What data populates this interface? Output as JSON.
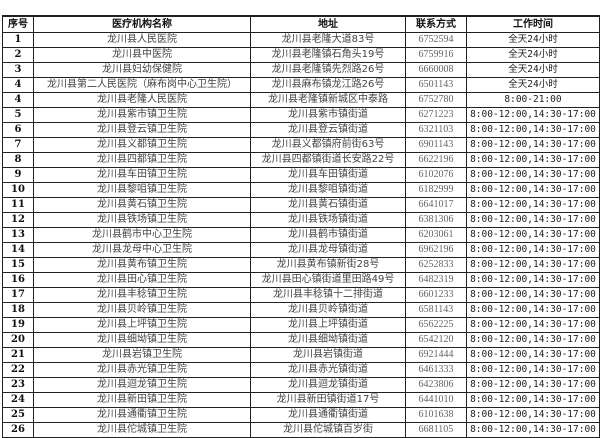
{
  "headers": [
    "序号",
    "医疗机构名称",
    "地址",
    "联系方式",
    "工作时间"
  ],
  "rows": [
    {
      "no": "1",
      "name": "龙川县人民医院",
      "address": "龙川县老隆大道83号",
      "phone": "6752594",
      "hours": "全天24小时"
    },
    {
      "no": "2",
      "name": "龙川县中医院",
      "address": "龙川县老隆镇石角头19号",
      "phone": "6759916",
      "hours": "全天24小时"
    },
    {
      "no": "3",
      "name": "龙川县妇幼保健院",
      "address": "龙川县老隆镇先烈路26号",
      "phone": "6660008",
      "hours": "全天24小时"
    },
    {
      "no": "4",
      "name": "龙川县第二人民医院（麻布岗中心卫生院）",
      "address": "龙川县麻布镇龙江路26号",
      "phone": "6501143",
      "hours": "全天24小时"
    },
    {
      "no": "4",
      "name": "龙川县老隆人民医院",
      "address": "龙川县老隆镇新城区中泰路",
      "phone": "6752780",
      "hours": "8:00-21:00"
    },
    {
      "no": "5",
      "name": "龙川县紫市镇卫生院",
      "address": "龙川县紫市镇街道",
      "phone": "6271223",
      "hours": "8:00-12:00,14:30-17:00"
    },
    {
      "no": "6",
      "name": "龙川县登云镇卫生院",
      "address": "龙川县登云镇街道",
      "phone": "6321103",
      "hours": "8:00-12:00,14:30-17:00"
    },
    {
      "no": "7",
      "name": "龙川县义都镇卫生院",
      "address": "龙川县义都镇府前街63号",
      "phone": "6901143",
      "hours": "8:00-12:00,14:30-17:00"
    },
    {
      "no": "8",
      "name": "龙川县四都镇卫生院",
      "address": "龙川县四都镇街道长安路22号",
      "phone": "6622196",
      "hours": "8:00-12:00,14:30-17:00"
    },
    {
      "no": "9",
      "name": "龙川县车田镇卫生院",
      "address": "龙川县车田镇街道",
      "phone": "6102076",
      "hours": "8:00-12:00,14:30-17:00"
    },
    {
      "no": "10",
      "name": "龙川县黎咀镇卫生院",
      "address": "龙川县黎咀镇街道",
      "phone": "6182999",
      "hours": "8:00-12:00,14:30-17:00"
    },
    {
      "no": "11",
      "name": "龙川县黄石镇卫生院",
      "address": "龙川县黄石镇街道",
      "phone": "6641017",
      "hours": "8:00-12:00,14:30-17:00"
    },
    {
      "no": "12",
      "name": "龙川县铁场镇卫生院",
      "address": "龙川县铁场镇街道",
      "phone": "6381306",
      "hours": "8:00-12:00,14:30-17:00"
    },
    {
      "no": "13",
      "name": "龙川县鹤市中心卫生院",
      "address": "龙川县鹤市镇街道",
      "phone": "6203061",
      "hours": "8:00-12:00,14:30-17:00"
    },
    {
      "no": "14",
      "name": "龙川县龙母中心卫生院",
      "address": "龙川县龙母镇街道",
      "phone": "6962196",
      "hours": "8:00-12:00,14:30-17:00"
    },
    {
      "no": "15",
      "name": "龙川县黄布镇卫生院",
      "address": "龙川县黄布镇新街28号",
      "phone": "6252833",
      "hours": "8:00-12:00,14:30-17:00"
    },
    {
      "no": "16",
      "name": "龙川县田心镇卫生院",
      "address": "龙川县田心镇街道里田路49号",
      "phone": "6482319",
      "hours": "8:00-12:00,14:30-17:00"
    },
    {
      "no": "17",
      "name": "龙川县丰稔镇卫生院",
      "address": "龙川县丰稔镇十二排街道",
      "phone": "6601233",
      "hours": "8:00-12:00,14:30-17:00"
    },
    {
      "no": "18",
      "name": "龙川县贝岭镇卫生院",
      "address": "龙川县贝岭镇街道",
      "phone": "6581143",
      "hours": "8:00-12:00,14:30-17:00"
    },
    {
      "no": "19",
      "name": "龙川县上坪镇卫生院",
      "address": "龙川县上坪镇街道",
      "phone": "6562225",
      "hours": "8:00-12:00,14:30-17:00"
    },
    {
      "no": "20",
      "name": "龙川县细坳镇卫生院",
      "address": "龙川县细坳镇街道",
      "phone": "6542120",
      "hours": "8:00-12:00,14:30-17:00"
    },
    {
      "no": "21",
      "name": "龙川县岩镇卫生院",
      "address": "龙川县岩镇街道",
      "phone": "6921444",
      "hours": "8:00-12:00,14:30-17:00"
    },
    {
      "no": "22",
      "name": "龙川县赤光镇卫生院",
      "address": "龙川县赤光镇街道",
      "phone": "6461333",
      "hours": "8:00-12:00,14:30-17:00"
    },
    {
      "no": "23",
      "name": "龙川县迴龙镇卫生院",
      "address": "龙川县迴龙镇街道",
      "phone": "6423806",
      "hours": "8:00-12:00,14:30-17:00"
    },
    {
      "no": "24",
      "name": "龙川县新田镇卫生院",
      "address": "龙川县新田镇街道17号",
      "phone": "6441010",
      "hours": "8:00-12:00,14:30-17:00"
    },
    {
      "no": "25",
      "name": "龙川县通衢镇卫生院",
      "address": "龙川县通衢镇街道",
      "phone": "6101638",
      "hours": "8:00-12:00,14:30-17:00"
    },
    {
      "no": "26",
      "name": "龙川县佗城镇卫生院",
      "address": "龙川县佗城镇百岁街",
      "phone": "6681105",
      "hours": "8:00-12:00,14:30-17:00"
    }
  ]
}
